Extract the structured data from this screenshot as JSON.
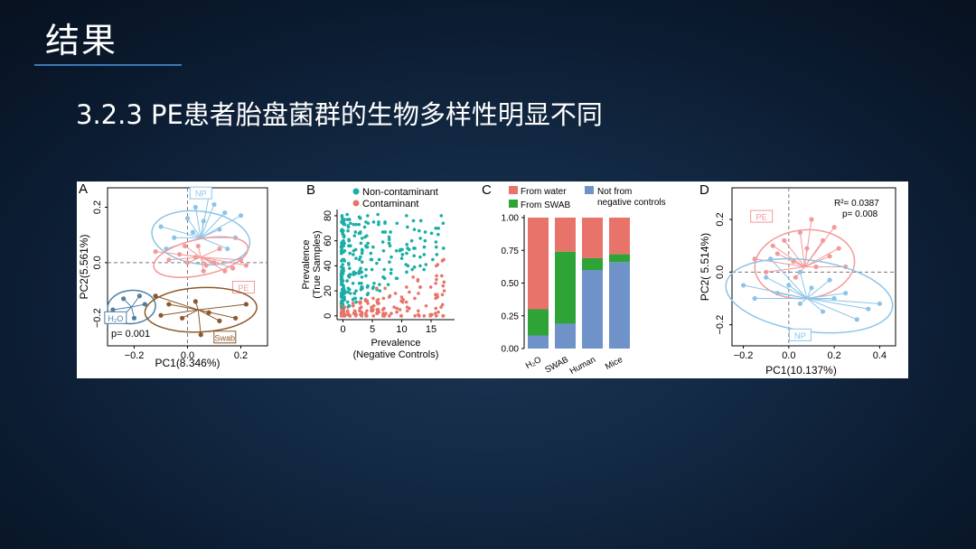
{
  "slide": {
    "title": "结果",
    "subtitle": "3.2.3 PE患者胎盘菌群的生物多样性明显不同"
  },
  "colors": {
    "np": "#8cc4e8",
    "pe": "#f29a9a",
    "h2o": "#4d7fa3",
    "swab": "#8a5a2b",
    "teal": "#1aaea6",
    "salmon": "#e8736a",
    "green": "#2ea336",
    "blue": "#6f93c9"
  },
  "chart_data": [
    {
      "panel": "A",
      "type": "scatter",
      "xlabel": "PC1(8.346%)",
      "ylabel": "PC2(5.561%)",
      "xticks": [
        "−0.2",
        "0.0",
        "0.2"
      ],
      "yticks": [
        "0.2",
        "0.0",
        "−0.2"
      ],
      "xlim": [
        -0.3,
        0.3
      ],
      "ylim": [
        -0.3,
        0.27
      ],
      "annotation": "p= 0.001",
      "groups": [
        {
          "name": "NP",
          "centroid": [
            0.05,
            0.09
          ],
          "points": [
            [
              -0.1,
              0.13
            ],
            [
              -0.05,
              0.09
            ],
            [
              0.0,
              0.16
            ],
            [
              0.03,
              0.2
            ],
            [
              0.06,
              0.15
            ],
            [
              0.1,
              0.21
            ],
            [
              0.12,
              0.12
            ],
            [
              0.15,
              0.05
            ],
            [
              0.18,
              0.09
            ],
            [
              -0.08,
              0.05
            ],
            [
              0.08,
              0.24
            ],
            [
              0.2,
              0.17
            ],
            [
              0.02,
              0.11
            ],
            [
              0.14,
              0.18
            ]
          ]
        },
        {
          "name": "PE",
          "centroid": [
            0.05,
            0.02
          ],
          "points": [
            [
              -0.12,
              0.04
            ],
            [
              -0.07,
              0.01
            ],
            [
              -0.03,
              0.03
            ],
            [
              0.0,
              0.0
            ],
            [
              0.03,
              0.02
            ],
            [
              0.07,
              -0.01
            ],
            [
              0.1,
              0.0
            ],
            [
              0.14,
              -0.03
            ],
            [
              0.17,
              -0.02
            ],
            [
              0.2,
              0.01
            ],
            [
              0.04,
              0.06
            ],
            [
              -0.01,
              0.06
            ],
            [
              0.12,
              0.05
            ],
            [
              0.06,
              -0.03
            ],
            [
              0.22,
              -0.01
            ]
          ]
        },
        {
          "name": "H₂O",
          "centroid": [
            -0.21,
            -0.16
          ],
          "points": [
            [
              -0.28,
              -0.17
            ],
            [
              -0.24,
              -0.13
            ],
            [
              -0.2,
              -0.2
            ],
            [
              -0.16,
              -0.15
            ],
            [
              -0.26,
              -0.21
            ],
            [
              -0.18,
              -0.12
            ]
          ]
        },
        {
          "name": "Swab",
          "centroid": [
            0.04,
            -0.17
          ],
          "points": [
            [
              -0.12,
              -0.12
            ],
            [
              -0.07,
              -0.15
            ],
            [
              -0.02,
              -0.2
            ],
            [
              0.03,
              -0.14
            ],
            [
              0.08,
              -0.18
            ],
            [
              0.12,
              -0.21
            ],
            [
              0.18,
              -0.2
            ],
            [
              0.22,
              -0.15
            ],
            [
              -0.1,
              -0.19
            ],
            [
              0.05,
              -0.26
            ]
          ]
        }
      ]
    },
    {
      "panel": "B",
      "type": "scatter",
      "xlabel": "Prevalence",
      "xlabel2": "(Negative Controls)",
      "ylabel": "Prevalence",
      "ylabel2": "(True Samples)",
      "xticks": [
        "0",
        "5",
        "10",
        "15"
      ],
      "yticks": [
        "0",
        "20",
        "40",
        "60",
        "80"
      ],
      "xlim": [
        -1,
        19
      ],
      "ylim": [
        -3,
        85
      ],
      "legend": [
        "Non-contaminant",
        "Contaminant"
      ]
    },
    {
      "panel": "C",
      "type": "bar",
      "stacked": true,
      "categories": [
        "H₂O",
        "SWAB",
        "Human",
        "Mice"
      ],
      "yticks": [
        "0.00",
        "0.25",
        "0.50",
        "0.75",
        "1.00"
      ],
      "ylim": [
        0,
        1
      ],
      "legend": [
        "From water",
        "From SWAB",
        "Not from",
        "negative controls"
      ],
      "series": [
        {
          "name": "Not from negative controls",
          "values": [
            0.1,
            0.19,
            0.6,
            0.66
          ]
        },
        {
          "name": "From SWAB",
          "values": [
            0.2,
            0.55,
            0.09,
            0.06
          ]
        },
        {
          "name": "From water",
          "values": [
            0.7,
            0.26,
            0.31,
            0.28
          ]
        }
      ]
    },
    {
      "panel": "D",
      "type": "scatter",
      "xlabel": "PC1(10.137%)",
      "ylabel": "PC2( 5.514%)",
      "xticks": [
        "−0.2",
        "0.0",
        "0.2",
        "0.4"
      ],
      "yticks": [
        "0.2",
        "0.0",
        "−0.2"
      ],
      "xlim": [
        -0.25,
        0.47
      ],
      "ylim": [
        -0.28,
        0.32
      ],
      "stats": [
        "R²= 0.0387",
        "p= 0.008"
      ],
      "groups": [
        {
          "name": "PE",
          "centroid": [
            0.07,
            0.02
          ],
          "points": [
            [
              -0.15,
              0.05
            ],
            [
              -0.1,
              0.0
            ],
            [
              -0.05,
              0.07
            ],
            [
              -0.02,
              0.12
            ],
            [
              0.02,
              0.04
            ],
            [
              0.05,
              0.15
            ],
            [
              0.08,
              0.09
            ],
            [
              0.1,
              0.2
            ],
            [
              0.12,
              0.02
            ],
            [
              0.15,
              0.12
            ],
            [
              0.18,
              0.06
            ],
            [
              0.2,
              0.17
            ],
            [
              0.22,
              0.09
            ],
            [
              0.25,
              0.02
            ],
            [
              0.03,
              -0.02
            ],
            [
              -0.07,
              0.1
            ]
          ]
        },
        {
          "name": "NP",
          "centroid": [
            0.08,
            -0.1
          ],
          "points": [
            [
              -0.2,
              -0.05
            ],
            [
              -0.15,
              -0.1
            ],
            [
              -0.1,
              -0.02
            ],
            [
              -0.05,
              -0.08
            ],
            [
              0.0,
              -0.05
            ],
            [
              0.05,
              -0.12
            ],
            [
              0.1,
              -0.06
            ],
            [
              0.15,
              -0.15
            ],
            [
              0.2,
              -0.1
            ],
            [
              0.25,
              -0.08
            ],
            [
              0.3,
              -0.18
            ],
            [
              0.35,
              -0.14
            ],
            [
              0.4,
              -0.12
            ],
            [
              -0.08,
              0.05
            ],
            [
              0.05,
              0.0
            ],
            [
              0.18,
              -0.03
            ]
          ]
        }
      ]
    }
  ]
}
